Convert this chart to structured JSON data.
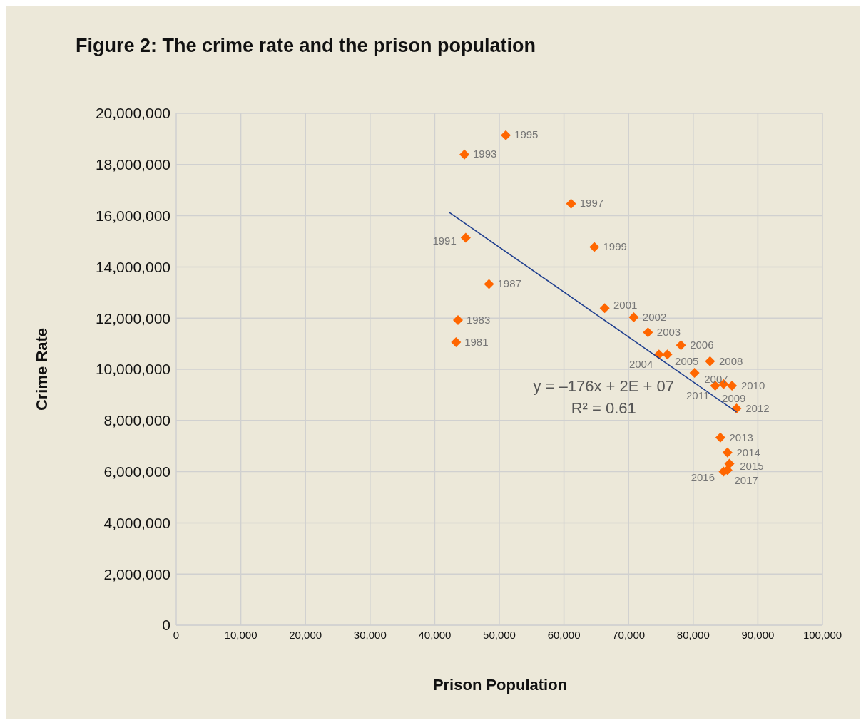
{
  "chart_data": {
    "type": "scatter",
    "title": "Figure 2: The crime rate and the prison population",
    "xlabel": "Prison Population",
    "ylabel": "Crime Rate",
    "xlim": [
      0,
      100000
    ],
    "xticks": [
      {
        "value": 0,
        "label": "0"
      },
      {
        "value": 10000,
        "label": "10,000"
      },
      {
        "value": 20000,
        "label": "20,000"
      },
      {
        "value": 30000,
        "label": "30,000"
      },
      {
        "value": 40000,
        "label": "40,000"
      },
      {
        "value": 50000,
        "label": "50,000"
      },
      {
        "value": 60000,
        "label": "60,000"
      },
      {
        "value": 70000,
        "label": "70,000"
      },
      {
        "value": 80000,
        "label": "80,000"
      },
      {
        "value": 90000,
        "label": "90,000"
      },
      {
        "value": 100000,
        "label": "100,000"
      }
    ],
    "ylim": [
      0,
      20000000
    ],
    "yticks": [
      {
        "value": 0,
        "label": "0"
      },
      {
        "value": 2000000,
        "label": "2,000,000"
      },
      {
        "value": 4000000,
        "label": "4,000,000"
      },
      {
        "value": 6000000,
        "label": "6,000,000"
      },
      {
        "value": 8000000,
        "label": "8,000,000"
      },
      {
        "value": 10000000,
        "label": "10,000,000"
      },
      {
        "value": 12000000,
        "label": "12,000,000"
      },
      {
        "value": 14000000,
        "label": "14,000,000"
      },
      {
        "value": 16000000,
        "label": "16,000,000"
      },
      {
        "value": 18000000,
        "label": "18,000,000"
      },
      {
        "value": 20000000,
        "label": "20,000,000"
      }
    ],
    "grid": true,
    "series": [
      {
        "color": "#ff6600",
        "marker": "diamond",
        "x": [
          43300,
          43600,
          48400,
          44800,
          44600,
          51000,
          61100,
          64700,
          66300,
          70800,
          73000,
          74700,
          76000,
          78100,
          80200,
          82600,
          84700,
          86000,
          83400,
          86700,
          84200,
          85300,
          85600,
          84700,
          85300
        ],
        "values": [
          11060000,
          11920000,
          13330000,
          15140000,
          18390000,
          19140000,
          16470000,
          14780000,
          12390000,
          12030000,
          11440000,
          10580000,
          10580000,
          10940000,
          9860000,
          10310000,
          9420000,
          9360000,
          9360000,
          8470000,
          7330000,
          6750000,
          6310000,
          6000000,
          6060000
        ]
      },
      {
        "type": "line",
        "marker": "none",
        "color": "#1f3f8f",
        "x": [
          42200,
          86700
        ],
        "values": [
          16140000,
          8330000
        ]
      }
    ],
    "annotations": [
      "y = –176x + 2E + 07",
      "R² = 0.61",
      {
        "text": "1981",
        "x": 43300,
        "y": 11060000
      },
      {
        "text": "1983",
        "x": 43600,
        "y": 11920000
      },
      {
        "text": "1987",
        "x": 48400,
        "y": 13330000
      },
      {
        "text": "1991",
        "x": 44800,
        "y": 15140000
      },
      {
        "text": "1993",
        "x": 44600,
        "y": 18390000
      },
      {
        "text": "1995",
        "x": 51000,
        "y": 19140000
      },
      {
        "text": "1997",
        "x": 61100,
        "y": 16470000
      },
      {
        "text": "1999",
        "x": 64700,
        "y": 14780000
      },
      {
        "text": "2001",
        "x": 66300,
        "y": 12390000
      },
      {
        "text": "2002",
        "x": 70800,
        "y": 12030000
      },
      {
        "text": "2003",
        "x": 73000,
        "y": 11440000
      },
      {
        "text": "2004",
        "x": 74700,
        "y": 10580000
      },
      {
        "text": "2005",
        "x": 76000,
        "y": 10580000
      },
      {
        "text": "2006",
        "x": 78100,
        "y": 10940000
      },
      {
        "text": "2007",
        "x": 80200,
        "y": 9860000
      },
      {
        "text": "2008",
        "x": 82600,
        "y": 10310000
      },
      {
        "text": "2009",
        "x": 84700,
        "y": 9420000
      },
      {
        "text": "2010",
        "x": 86000,
        "y": 9360000
      },
      {
        "text": "2011",
        "x": 83400,
        "y": 9360000
      },
      {
        "text": "2012",
        "x": 86700,
        "y": 8470000
      },
      {
        "text": "2013",
        "x": 84200,
        "y": 7330000
      },
      {
        "text": "2014",
        "x": 85300,
        "y": 6750000
      },
      {
        "text": "2015",
        "x": 85600,
        "y": 6310000
      },
      {
        "text": "2016",
        "x": 84700,
        "y": 6000000
      },
      {
        "text": "2017",
        "x": 85300,
        "y": 6060000
      }
    ]
  }
}
